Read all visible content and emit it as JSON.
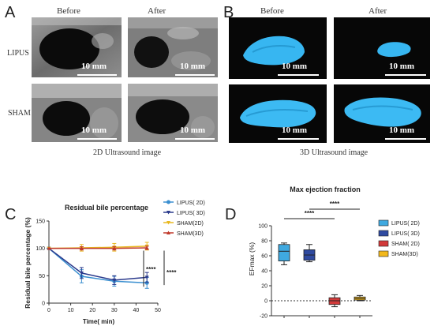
{
  "panels": {
    "a": {
      "letter": "A",
      "before": "Before",
      "after": "After",
      "rows": [
        "LIPUS",
        "SHAM"
      ],
      "scale": "10 mm",
      "caption": "2D Ultrasound image"
    },
    "b": {
      "letter": "B",
      "before": "Before",
      "after": "After",
      "scale": "10 mm",
      "caption": "3D Ultrasound image"
    },
    "c": {
      "letter": "C"
    },
    "d": {
      "letter": "D"
    }
  },
  "chart_data": [
    {
      "type": "line",
      "title": "Residual bile percentage",
      "xlabel": "Time( min)",
      "ylabel": "Residual bile percentage (%)",
      "xlim": [
        0,
        50
      ],
      "ylim": [
        0,
        150
      ],
      "xticks": [
        0,
        10,
        20,
        30,
        40,
        50
      ],
      "yticks": [
        0,
        50,
        100,
        150
      ],
      "legend_position": "top-right",
      "series": [
        {
          "name": "LIPUS( 2D)",
          "color": "#3a8fd0",
          "marker": "circle",
          "x": [
            0,
            15,
            30,
            45
          ],
          "y": [
            100,
            49,
            40,
            37
          ],
          "err": [
            0,
            12,
            9,
            10
          ]
        },
        {
          "name": "LIPUS( 3D)",
          "color": "#2b3a8c",
          "marker": "triangle-down",
          "x": [
            0,
            15,
            30,
            45
          ],
          "y": [
            100,
            55,
            42,
            47
          ],
          "err": [
            0,
            10,
            8,
            9
          ]
        },
        {
          "name": "SHAM(2D)",
          "color": "#e8b820",
          "marker": "triangle-down",
          "x": [
            0,
            15,
            30,
            45
          ],
          "y": [
            100,
            101,
            102,
            104
          ],
          "err": [
            0,
            6,
            7,
            7
          ]
        },
        {
          "name": "SHAM(3D)",
          "color": "#c0392b",
          "marker": "triangle-up",
          "x": [
            0,
            15,
            30,
            45
          ],
          "y": [
            100,
            100,
            100,
            101
          ],
          "err": [
            0,
            3,
            3,
            3
          ]
        }
      ],
      "annotations": [
        "****",
        "****"
      ]
    },
    {
      "type": "box",
      "title": "Max ejection fraction",
      "ylabel": "EFmax (%)",
      "ylim": [
        -20,
        100
      ],
      "yticks": [
        -20,
        0,
        20,
        40,
        60,
        80,
        100
      ],
      "legend_position": "right",
      "reference_line": 0,
      "boxes": [
        {
          "name": "LIPUS( 2D)",
          "color": "#3fa9e0",
          "min": 48,
          "q1": 53,
          "median": 66,
          "q3": 75,
          "max": 77
        },
        {
          "name": "LIPUS( 3D)",
          "color": "#2f4aa0",
          "min": 52,
          "q1": 54,
          "median": 61,
          "q3": 68,
          "max": 75
        },
        {
          "name": "SHAM( 2D)",
          "color": "#d23a3a",
          "min": -8,
          "q1": -5,
          "median": 0,
          "q3": 4,
          "max": 8
        },
        {
          "name": "SHAM(3D)",
          "color": "#f2b81c",
          "min": 0,
          "q1": 1,
          "median": 3,
          "q3": 5,
          "max": 7
        }
      ],
      "annotations": [
        "****",
        "****"
      ]
    }
  ]
}
